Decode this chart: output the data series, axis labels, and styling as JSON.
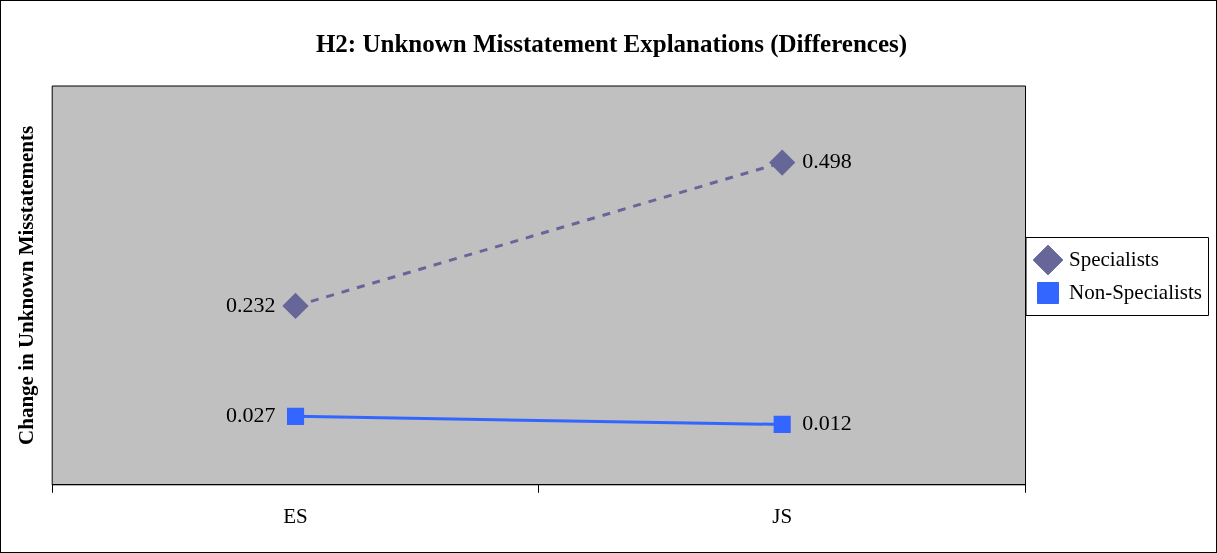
{
  "chart_data": {
    "type": "line",
    "title": "H2: Unknown Misstatement Explanations (Differences)",
    "ylabel": "Change in Unknown Misstatements",
    "categories": [
      "ES",
      "JS"
    ],
    "series": [
      {
        "name": "Specialists",
        "color": "#666699",
        "values": [
          0.232,
          0.498
        ],
        "marker": "diamond",
        "line_style": "dashed"
      },
      {
        "name": "Non-Specialists",
        "color": "#3366ff",
        "values": [
          0.027,
          0.012
        ],
        "marker": "square",
        "line_style": "solid"
      }
    ],
    "ylim": [
      -0.1,
      0.64
    ],
    "tick_labels": "x",
    "data_labels": true,
    "legend": "right",
    "grid": false
  }
}
